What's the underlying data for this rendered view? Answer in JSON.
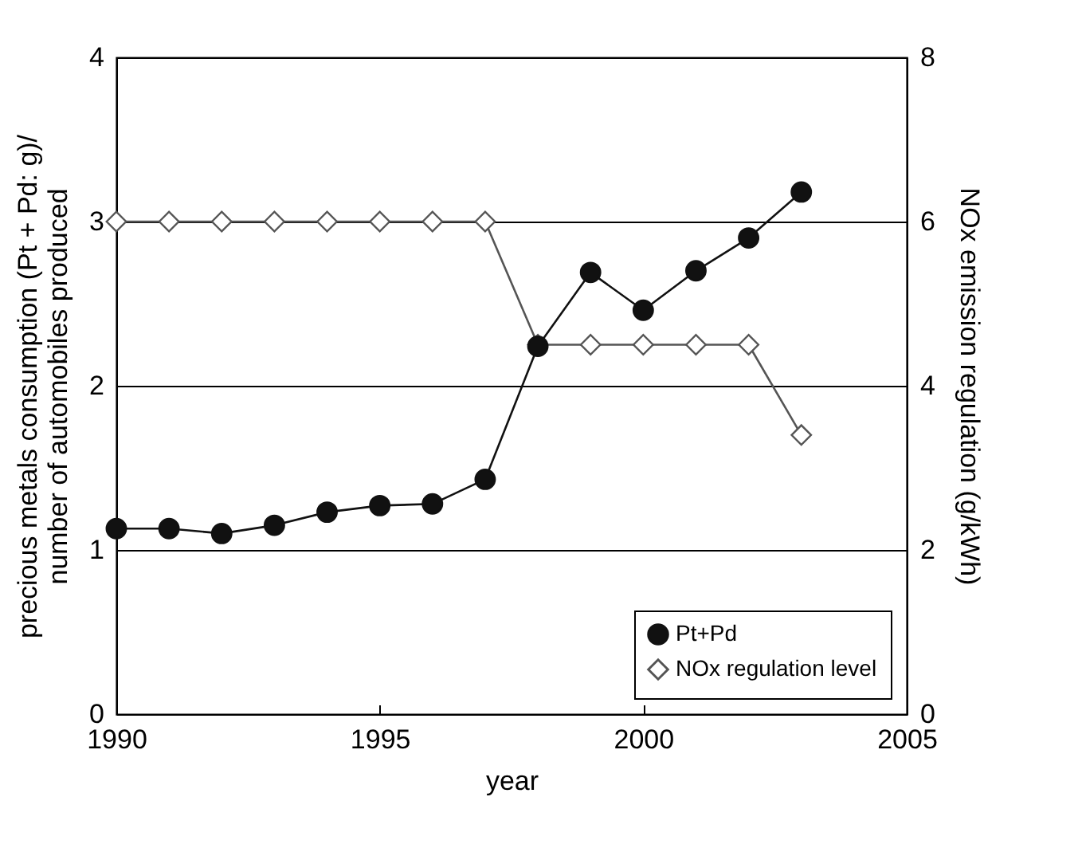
{
  "chart_data": {
    "type": "line",
    "xlabel": "year",
    "ylabel": "precious metals consumption (Pt + Pd: g)/ number of automobiles produced",
    "y2label": "NOx emission regulation (g/kWh)",
    "x": [
      1990,
      1991,
      1992,
      1993,
      1994,
      1995,
      1996,
      1997,
      1998,
      1999,
      2000,
      2001,
      2002,
      2003
    ],
    "series": [
      {
        "name": "Pt+Pd",
        "color": "#111111",
        "marker": "circle",
        "values": [
          1.13,
          1.13,
          1.1,
          1.15,
          1.23,
          1.27,
          1.28,
          1.43,
          2.24,
          2.69,
          2.46,
          2.7,
          2.9,
          3.18
        ]
      },
      {
        "name": "NOx regulation level",
        "color": "#555555",
        "marker": "diamond",
        "axis": "y2",
        "values": [
          6,
          6,
          6,
          6,
          6,
          6,
          6,
          6,
          4.5,
          4.5,
          4.5,
          4.5,
          4.5,
          3.4
        ]
      }
    ],
    "xlim": [
      1990,
      2005
    ],
    "xticks": [
      1990,
      1995,
      2000,
      2005
    ],
    "ylim": [
      0,
      4
    ],
    "yticks": [
      0,
      1,
      2,
      3,
      4
    ],
    "y2lim": [
      0,
      8
    ],
    "y2ticks": [
      0,
      2,
      4,
      6,
      8
    ],
    "grid": "y",
    "legend": "bottom right",
    "line_style": "solid"
  }
}
